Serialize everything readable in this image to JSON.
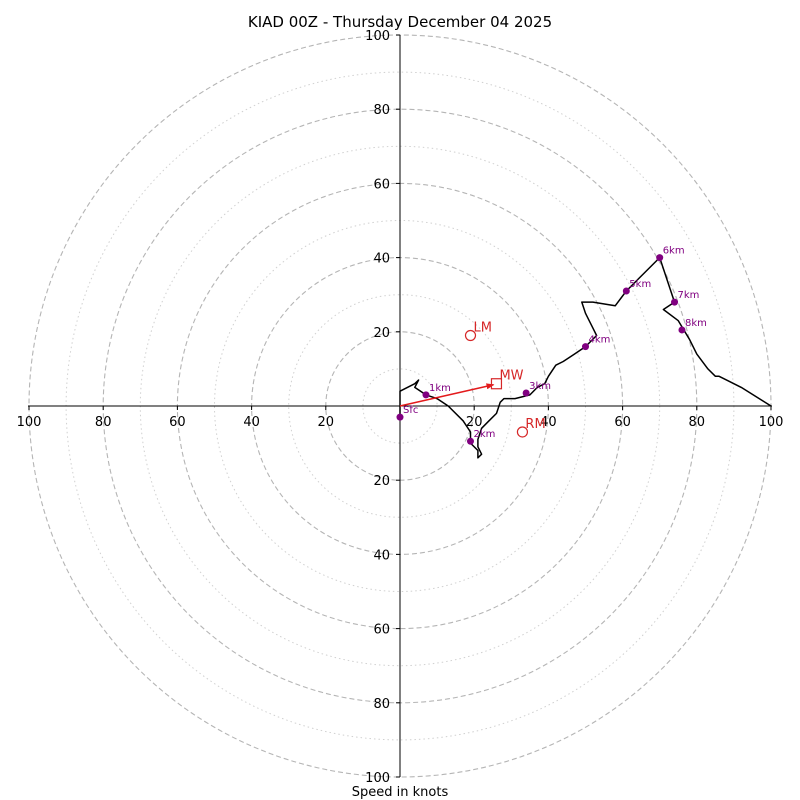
{
  "chart_data": {
    "type": "hodograph",
    "title": "KIAD 00Z - Thursday December 04 2025",
    "xlabel": "Speed in knots",
    "range": [
      -100,
      100
    ],
    "rings_major": [
      20,
      40,
      60,
      80,
      100
    ],
    "rings_minor": [
      10,
      30,
      50,
      70,
      90
    ],
    "x_tick_labels": [
      "100",
      "80",
      "60",
      "40",
      "20",
      "20",
      "40",
      "60",
      "80",
      "100"
    ],
    "x_tick_values": [
      -100,
      -80,
      -60,
      -40,
      -20,
      20,
      40,
      60,
      80,
      100
    ],
    "y_tick_labels": [
      "100",
      "80",
      "60",
      "40",
      "20",
      "20",
      "40",
      "60",
      "80",
      "100"
    ],
    "y_tick_values": [
      100,
      80,
      60,
      40,
      20,
      -20,
      -40,
      -60,
      -80,
      -100
    ],
    "profile": {
      "color": "#000000",
      "points": [
        [
          0,
          -3
        ],
        [
          0,
          4
        ],
        [
          4,
          6
        ],
        [
          5,
          7
        ],
        [
          4,
          5
        ],
        [
          7,
          3
        ],
        [
          10,
          2
        ],
        [
          13,
          0
        ],
        [
          17,
          -4
        ],
        [
          19,
          -7
        ],
        [
          19,
          -10
        ],
        [
          21,
          -12
        ],
        [
          21,
          -14
        ],
        [
          22,
          -13
        ],
        [
          21,
          -11
        ],
        [
          21,
          -9
        ],
        [
          22,
          -6
        ],
        [
          24,
          -4
        ],
        [
          26,
          -2
        ],
        [
          27,
          1
        ],
        [
          28,
          2
        ],
        [
          31,
          2
        ],
        [
          35,
          3
        ],
        [
          37,
          5
        ],
        [
          39,
          6
        ],
        [
          40,
          8
        ],
        [
          42,
          11
        ],
        [
          44,
          12
        ],
        [
          47,
          14
        ],
        [
          50,
          16
        ],
        [
          53,
          19
        ],
        [
          52,
          21
        ],
        [
          50,
          25
        ],
        [
          49,
          28
        ],
        [
          52,
          28
        ],
        [
          58,
          27
        ],
        [
          61,
          31
        ],
        [
          64,
          34
        ],
        [
          70,
          40
        ],
        [
          72,
          34
        ],
        [
          74,
          28
        ],
        [
          71,
          26
        ],
        [
          75,
          23
        ],
        [
          78,
          18
        ],
        [
          80,
          14
        ],
        [
          83,
          10
        ],
        [
          85,
          8
        ],
        [
          86,
          8
        ],
        [
          92,
          5
        ],
        [
          100,
          0
        ]
      ]
    },
    "height_markers": [
      {
        "label": "Sfc",
        "u": 0,
        "v": -3
      },
      {
        "label": "1km",
        "u": 7,
        "v": 3
      },
      {
        "label": "2km",
        "u": 19,
        "v": -9.5
      },
      {
        "label": "3km",
        "u": 34,
        "v": 3.5
      },
      {
        "label": "4km",
        "u": 50,
        "v": 16
      },
      {
        "label": "5km",
        "u": 61,
        "v": 31
      },
      {
        "label": "6km",
        "u": 70,
        "v": 40
      },
      {
        "label": "7km",
        "u": 74,
        "v": 28
      },
      {
        "label": "8km",
        "u": 76,
        "v": 20.5
      }
    ],
    "marker_color": "#800080",
    "storm_vectors": [
      {
        "label": "LM",
        "u": 19,
        "v": 19,
        "shape": "circle"
      },
      {
        "label": "MW",
        "u": 26,
        "v": 6,
        "shape": "square"
      },
      {
        "label": "RM",
        "u": 33,
        "v": -7,
        "shape": "circle"
      }
    ],
    "mean_wind_arrow": {
      "from": [
        0,
        0
      ],
      "to": [
        26,
        6
      ],
      "color": "#e31a1c"
    },
    "vector_color": "#d62728"
  }
}
